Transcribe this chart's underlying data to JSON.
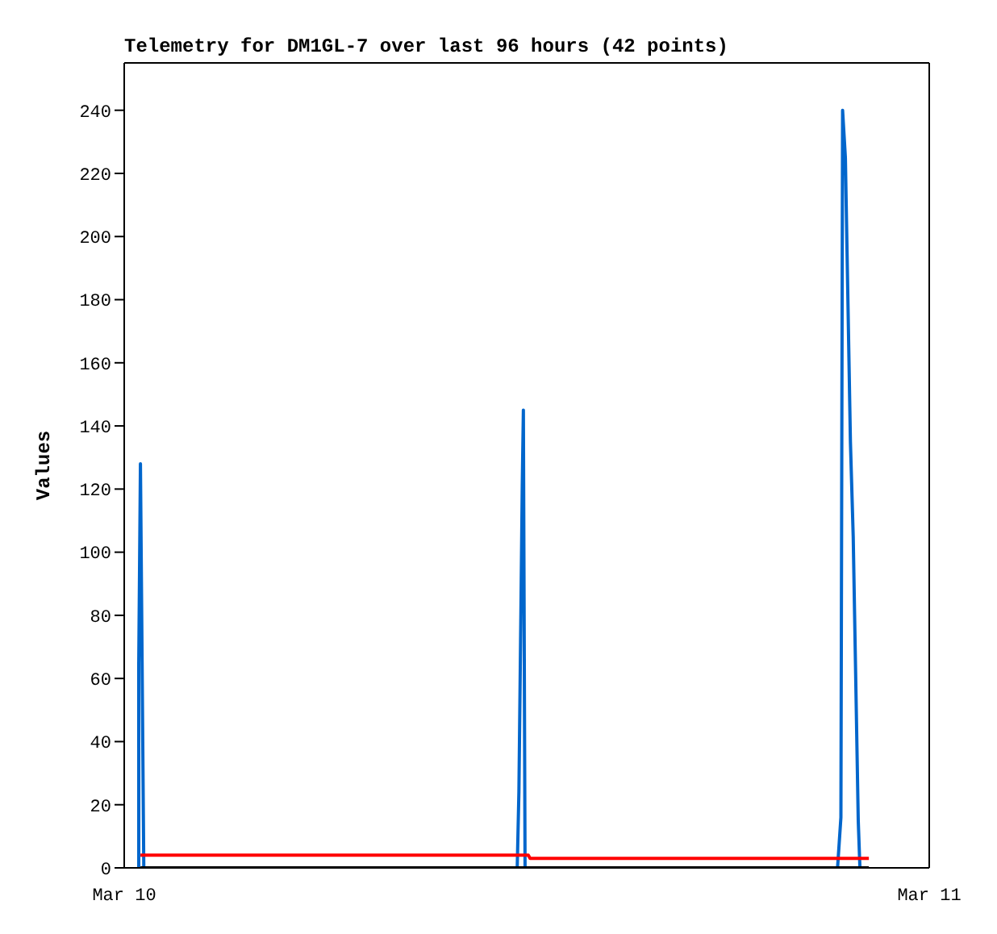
{
  "chart_data": {
    "type": "line",
    "title": "Telemetry for DM1GL-7 over last 96 hours (42 points)",
    "ylabel": "Values",
    "xlim": [
      "--03-10",
      "--03-11"
    ],
    "xticks": [
      {
        "value": "--03-10",
        "label": "Mar 10"
      },
      {
        "value": "--03-11",
        "label": "Mar 11"
      }
    ],
    "ylim": [
      0,
      255
    ],
    "yticks": [
      0,
      20,
      40,
      60,
      80,
      100,
      120,
      140,
      160,
      180,
      200,
      220,
      240
    ],
    "grid": false,
    "marker": "none",
    "line_style": "solid",
    "series": [
      {
        "color": "#0066cc",
        "x": [
          "--03-10T00:26",
          "--03-10T00:26",
          "--03-10T00:29",
          "--03-10T00:32",
          "--03-10T00:35",
          "--03-10T06:00",
          "--03-10T11:43",
          "--03-10T11:46",
          "--03-10T11:49",
          "--03-10T11:52",
          "--03-10T11:54",
          "--03-10T11:57",
          "--03-10T17:00",
          "--03-10T21:16",
          "--03-10T21:19",
          "--03-10T21:22",
          "--03-10T21:25",
          "--03-10T21:30",
          "--03-10T21:33",
          "--03-10T21:36",
          "--03-10T21:39",
          "--03-10T21:44",
          "--03-10T21:47",
          "--03-10T21:50",
          "--03-10T21:53",
          "--03-10T21:56"
        ],
        "values": [
          0,
          65,
          128,
          65,
          0,
          null,
          0,
          24,
          72,
          121,
          145,
          0,
          null,
          0,
          8,
          16,
          240,
          225,
          195,
          165,
          135,
          105,
          75,
          45,
          15,
          0
        ]
      },
      {
        "color": "#ff0000",
        "x": [
          "--03-10T00:29",
          "--03-10T12:03",
          "--03-10T12:06",
          "--03-10T22:12"
        ],
        "values": [
          4,
          4,
          3,
          3
        ]
      },
      {
        "color": "#000000",
        "x": [
          "--03-10T00:29",
          "--03-10T22:12"
        ],
        "values": [
          0,
          0
        ]
      }
    ]
  }
}
